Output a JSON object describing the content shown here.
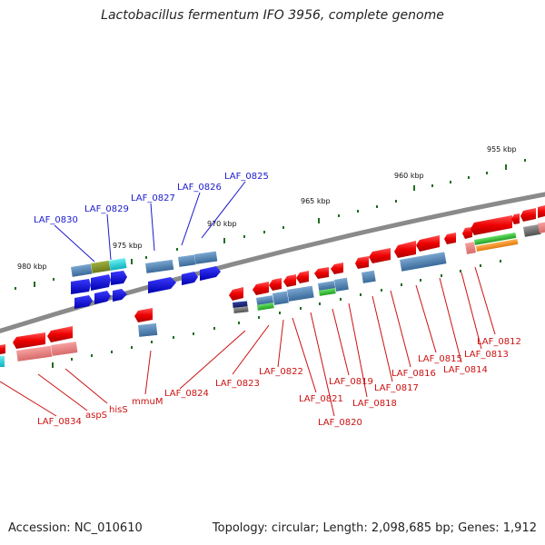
{
  "title": "Lactobacillus fermentum IFO 3956, complete genome",
  "footer": {
    "accession": "Accession: NC_010610",
    "topology": "Topology: circular; Length: 2,098,685 bp; Genes: 1,912"
  },
  "scale_ticks": [
    "955 kbp",
    "960 kbp",
    "965 kbp",
    "970 kbp",
    "975 kbp",
    "980 kbp"
  ],
  "top_labels": [
    "LAF_0825",
    "LAF_0826",
    "LAF_0827",
    "LAF_0829",
    "LAF_0830"
  ],
  "bottom_labels": [
    "LAF_0812",
    "LAF_0813",
    "LAF_0814",
    "LAF_0815",
    "LAF_0816",
    "LAF_0817",
    "LAF_0818",
    "LAF_0819",
    "LAF_0820",
    "LAF_0821",
    "LAF_0822",
    "LAF_0823",
    "LAF_0824",
    "mmuM",
    "hisS",
    "aspS",
    "LAF_0834"
  ],
  "colors": {
    "top_label": "#1a1acc",
    "bottom_label": "#cc1111",
    "backbone": "#808080",
    "scale_tick": "#1f6e1f"
  }
}
